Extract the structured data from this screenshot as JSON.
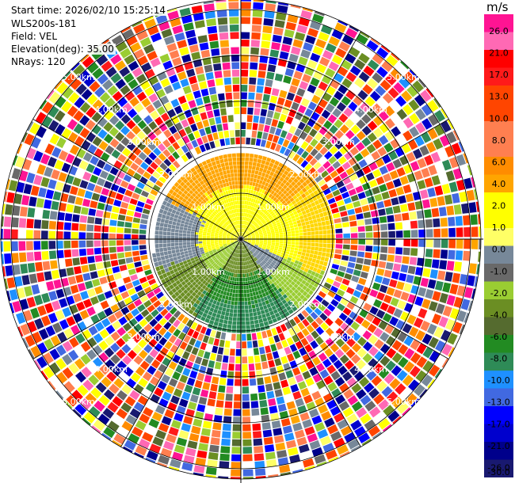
{
  "header": {
    "start_time": "Start time: 2026/02/10 15:25:14",
    "station": "WLS200s-181",
    "field": "Field: VEL",
    "elevation": "Elevation(deg): 35.00",
    "nrays": "NRays: 120"
  },
  "colorbar": {
    "unit": "m/s",
    "ticks": [
      "26.0",
      "21.0",
      "17.0",
      "13.0",
      "10.0",
      "8.0",
      "6.0",
      "4.0",
      "2.0",
      "1.0",
      "0.0",
      "-1.0",
      "-2.0",
      "-4.0",
      "-6.0",
      "-8.0",
      "-10.0",
      "-13.0",
      "-17.0",
      "-21.0",
      "-26.0",
      "-30.0"
    ],
    "colors": [
      "#ff1493",
      "#ff69b4",
      "#ff0000",
      "#ff1a1a",
      "#ff4500",
      "#ff4500",
      "#ff7f50",
      "#ff7f50",
      "#ff8c00",
      "#ffa500",
      "#ffff00",
      "#ffff00",
      "#ffff66",
      "#778899",
      "#696969",
      "#9acd32",
      "#6b8e23",
      "#556b2f",
      "#228b22",
      "#2e8b57",
      "#1e90ff",
      "#4169e1",
      "#0000ff",
      "#0000cd",
      "#00008b",
      "#191970"
    ]
  },
  "chart_data": {
    "type": "polar-ppi",
    "title": "",
    "field": "VEL",
    "unit": "m/s",
    "nrays": 120,
    "elevation_deg": 35.0,
    "range_rings_km": [
      1.0,
      2.0,
      3.0,
      4.0,
      5.0
    ],
    "ring_labels": [
      "1.00km",
      "2.00km",
      "3.00km",
      "4.00km",
      "5.00km"
    ],
    "spokes_deg": [
      0,
      30,
      60,
      90,
      120,
      150,
      180,
      210,
      240,
      270,
      300,
      330
    ],
    "colorbar_min": -30.0,
    "colorbar_max": 26.0,
    "near_field_pattern": [
      {
        "sector": "north",
        "value_range": [
          4.0,
          6.0
        ]
      },
      {
        "sector": "east-west band",
        "value_range": [
          1.0,
          4.0
        ]
      },
      {
        "sector": "south-west",
        "value_range": [
          -4.0,
          -1.0
        ]
      },
      {
        "sector": "south",
        "value_range": [
          -8.0,
          -4.0
        ]
      }
    ],
    "far_field": "noise"
  }
}
